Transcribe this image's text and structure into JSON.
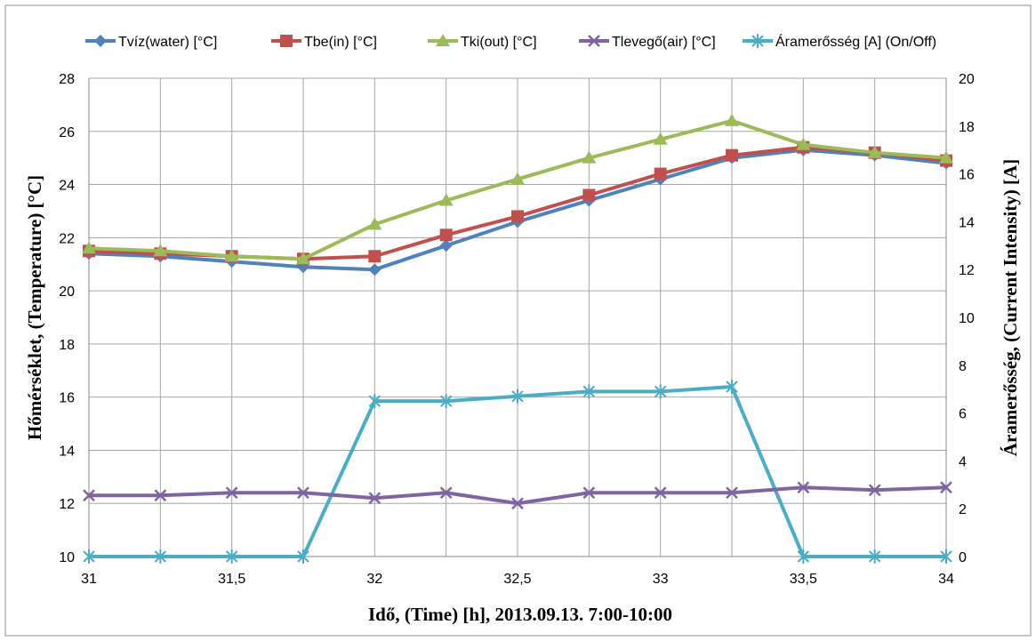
{
  "chart_data": {
    "type": "line",
    "xlabel": "Idő, (Time) [h], 2013.09.13. 7:00-10:00",
    "ylabel_left": "Hőmérséklet, (Temperature) [°C]",
    "ylabel_right": "Áramerősség, (Current Intensity) [A]",
    "x": [
      31,
      31.25,
      31.5,
      31.75,
      32,
      32.25,
      32.5,
      32.75,
      33,
      33.25,
      33.5,
      33.75,
      34
    ],
    "xlim": [
      31,
      34
    ],
    "x_ticks": [
      31,
      31.5,
      32,
      32.5,
      33,
      33.5,
      34
    ],
    "x_tick_labels": [
      "31",
      "31,5",
      "32",
      "32,5",
      "33",
      "33,5",
      "34"
    ],
    "ylim_left": [
      10,
      28
    ],
    "y_ticks_left": [
      10,
      12,
      14,
      16,
      18,
      20,
      22,
      24,
      26,
      28
    ],
    "ylim_right": [
      0,
      20
    ],
    "y_ticks_right": [
      0,
      2,
      4,
      6,
      8,
      10,
      12,
      14,
      16,
      18,
      20
    ],
    "grid": true,
    "legend_position": "top",
    "series": [
      {
        "name": "Tvíz(water) [°C]",
        "axis": "left",
        "color": "#4f81bd",
        "marker": "diamond",
        "values": [
          21.4,
          21.3,
          21.1,
          20.9,
          20.8,
          21.7,
          22.6,
          23.4,
          24.2,
          25.0,
          25.3,
          25.1,
          24.8
        ]
      },
      {
        "name": "Tbe(in) [°C]",
        "axis": "left",
        "color": "#c0504d",
        "marker": "square",
        "values": [
          21.5,
          21.4,
          21.3,
          21.2,
          21.3,
          22.1,
          22.8,
          23.6,
          24.4,
          25.1,
          25.4,
          25.2,
          24.9
        ]
      },
      {
        "name": "Tki(out) [°C]",
        "axis": "left",
        "color": "#9bbb59",
        "marker": "triangle",
        "values": [
          21.6,
          21.5,
          21.3,
          21.2,
          22.5,
          23.4,
          24.2,
          25.0,
          25.7,
          26.4,
          25.5,
          25.2,
          25.0
        ]
      },
      {
        "name": "Tlevegő(air) [°C]",
        "axis": "left",
        "color": "#8064a2",
        "marker": "x",
        "values": [
          12.3,
          12.3,
          12.4,
          12.4,
          12.2,
          12.4,
          12.0,
          12.4,
          12.4,
          12.4,
          12.6,
          12.5,
          12.6
        ]
      },
      {
        "name": "Áramerősség [A] (On/Off)",
        "axis": "right",
        "color": "#4bacc6",
        "marker": "star",
        "values": [
          0,
          0,
          0,
          0,
          6.5,
          6.5,
          6.7,
          6.9,
          6.9,
          7.1,
          0,
          0,
          0
        ]
      }
    ]
  }
}
